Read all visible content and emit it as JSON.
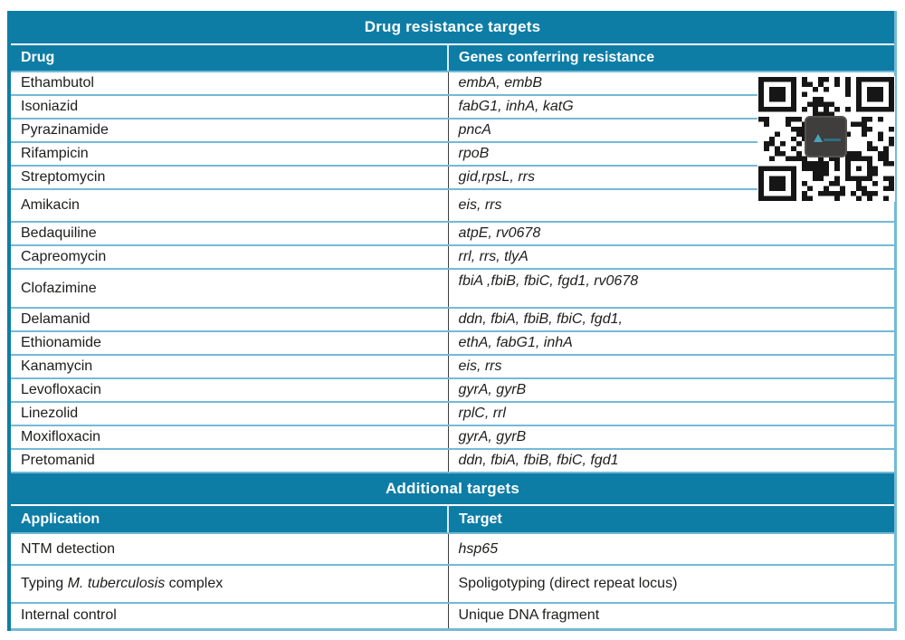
{
  "colors": {
    "header_teal": "#0e7da6",
    "row_divider_blue": "#74b9d7",
    "column_divider_dark": "#3d3d3c",
    "body_text": "#1d1d1b",
    "qr_module": "#161616"
  },
  "drug_table": {
    "title": "Drug resistance targets",
    "columns": [
      "Drug",
      "Genes conferring resistance"
    ],
    "rows": [
      {
        "drug": "Ethambutol",
        "genes": "embA, embB"
      },
      {
        "drug": "Isoniazid",
        "genes": "fabG1, inhA, katG"
      },
      {
        "drug": "Pyrazinamide",
        "genes": "pncA"
      },
      {
        "drug": "Rifampicin",
        "genes": "rpoB"
      },
      {
        "drug": "Streptomycin",
        "genes": "gid,rpsL, rrs"
      },
      {
        "drug": "Amikacin",
        "genes": "eis, rrs",
        "row_class": "row-md"
      },
      {
        "drug": "Bedaquiline",
        "genes": "atpE, rv0678"
      },
      {
        "drug": "Capreomycin",
        "genes": "rrl, rrs, tlyA"
      },
      {
        "drug": "Clofazimine",
        "genes": "fbiA ,fbiB, fbiC, fgd1, rv0678",
        "row_class": "row-lg",
        "genes_class": "align-top"
      },
      {
        "drug": "Delamanid",
        "genes": "ddn, fbiA, fbiB, fbiC, fgd1,"
      },
      {
        "drug": "Ethionamide",
        "genes": "ethA, fabG1, inhA"
      },
      {
        "drug": "Kanamycin",
        "genes": "eis, rrs"
      },
      {
        "drug": "Levofloxacin",
        "genes": "gyrA, gyrB"
      },
      {
        "drug": "Linezolid",
        "genes": "rplC, rrl"
      },
      {
        "drug": "Moxifloxacin",
        "genes": "gyrA, gyrB"
      },
      {
        "drug": "Pretomanid",
        "genes": "ddn, fbiA, fbiB, fbiC, fgd1"
      }
    ]
  },
  "additional_table": {
    "title": "Additional targets",
    "columns": [
      "Application",
      "Target"
    ],
    "rows": [
      {
        "application_before": "NTM detection",
        "application_italic": "",
        "application_after": "",
        "target": "hsp65",
        "target_class": "italic",
        "row_class": "row-md2"
      },
      {
        "application_before": "Typing ",
        "application_italic": "M. tuberculosis",
        "application_after": " complex",
        "target": "Spoligotyping (direct repeat locus)",
        "row_class": "row-lg2"
      },
      {
        "application_before": "Internal control",
        "application_italic": "",
        "application_after": "",
        "target": "Unique DNA fragment"
      }
    ]
  },
  "qr_code": {
    "label": "qr-code"
  }
}
